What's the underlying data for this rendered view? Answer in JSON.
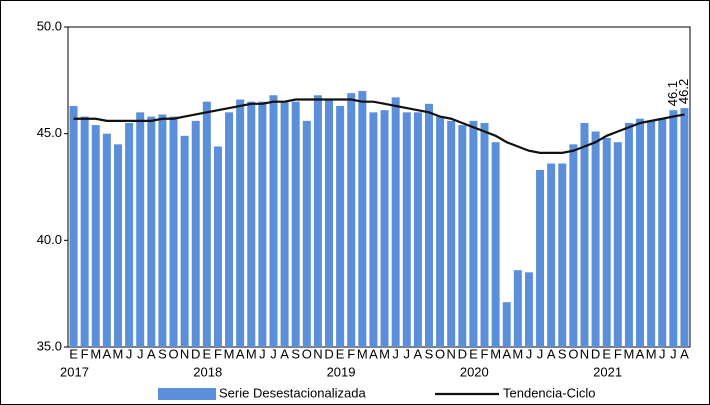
{
  "chart_data": {
    "type": "bar",
    "categories": [
      "E",
      "F",
      "M",
      "A",
      "M",
      "J",
      "J",
      "A",
      "S",
      "O",
      "N",
      "D",
      "E",
      "F",
      "M",
      "A",
      "M",
      "J",
      "J",
      "A",
      "S",
      "O",
      "N",
      "D",
      "E",
      "F",
      "M",
      "A",
      "M",
      "J",
      "J",
      "A",
      "S",
      "O",
      "N",
      "D",
      "E",
      "F",
      "M",
      "A",
      "M",
      "J",
      "J",
      "A",
      "S",
      "O",
      "N",
      "D",
      "E",
      "F",
      "M",
      "A",
      "M",
      "J",
      "J",
      "A"
    ],
    "years": [
      "2017",
      "2018",
      "2019",
      "2020",
      "2021"
    ],
    "series": [
      {
        "name": "Serie Desestacionalizada",
        "type": "bar",
        "color": "#5b8fd9",
        "values": [
          46.3,
          45.8,
          45.4,
          45.0,
          44.5,
          45.5,
          46.0,
          45.8,
          45.9,
          45.8,
          44.9,
          45.6,
          46.5,
          44.4,
          46.0,
          46.6,
          46.5,
          46.5,
          46.8,
          46.5,
          46.5,
          45.6,
          46.8,
          46.6,
          46.3,
          46.9,
          47.0,
          46.0,
          46.1,
          46.7,
          46.0,
          46.0,
          46.4,
          45.8,
          45.6,
          45.4,
          45.6,
          45.5,
          44.6,
          37.1,
          38.6,
          38.5,
          43.3,
          43.6,
          43.6,
          44.5,
          45.5,
          45.1,
          44.8,
          44.6,
          45.5,
          45.7,
          45.6,
          45.7,
          46.1,
          46.2
        ],
        "value_labels": [
          null,
          null,
          null,
          null,
          null,
          null,
          null,
          null,
          null,
          null,
          null,
          null,
          null,
          null,
          null,
          null,
          null,
          null,
          null,
          null,
          null,
          null,
          null,
          null,
          null,
          null,
          null,
          null,
          null,
          null,
          null,
          null,
          null,
          null,
          null,
          null,
          null,
          null,
          null,
          null,
          null,
          null,
          null,
          null,
          null,
          null,
          null,
          null,
          null,
          null,
          null,
          null,
          null,
          null,
          "46.1",
          "46.2"
        ]
      },
      {
        "name": "Tendencia-Ciclo",
        "type": "line",
        "color": "#111111",
        "values": [
          45.7,
          45.7,
          45.7,
          45.6,
          45.6,
          45.6,
          45.6,
          45.6,
          45.7,
          45.7,
          45.8,
          45.9,
          46.0,
          46.1,
          46.2,
          46.3,
          46.4,
          46.4,
          46.5,
          46.5,
          46.6,
          46.6,
          46.6,
          46.6,
          46.6,
          46.6,
          46.5,
          46.5,
          46.4,
          46.3,
          46.2,
          46.1,
          46.0,
          45.8,
          45.7,
          45.5,
          45.3,
          45.1,
          44.9,
          44.6,
          44.4,
          44.2,
          44.1,
          44.1,
          44.1,
          44.2,
          44.4,
          44.6,
          44.9,
          45.1,
          45.3,
          45.5,
          45.6,
          45.7,
          45.8,
          45.9
        ]
      }
    ],
    "ylim": [
      35,
      50
    ],
    "yticks": [
      {
        "value": 35,
        "label": "35.0"
      },
      {
        "value": 40,
        "label": "40.0"
      },
      {
        "value": 45,
        "label": "45.0"
      },
      {
        "value": 50,
        "label": "50.0"
      }
    ],
    "grid": false
  }
}
